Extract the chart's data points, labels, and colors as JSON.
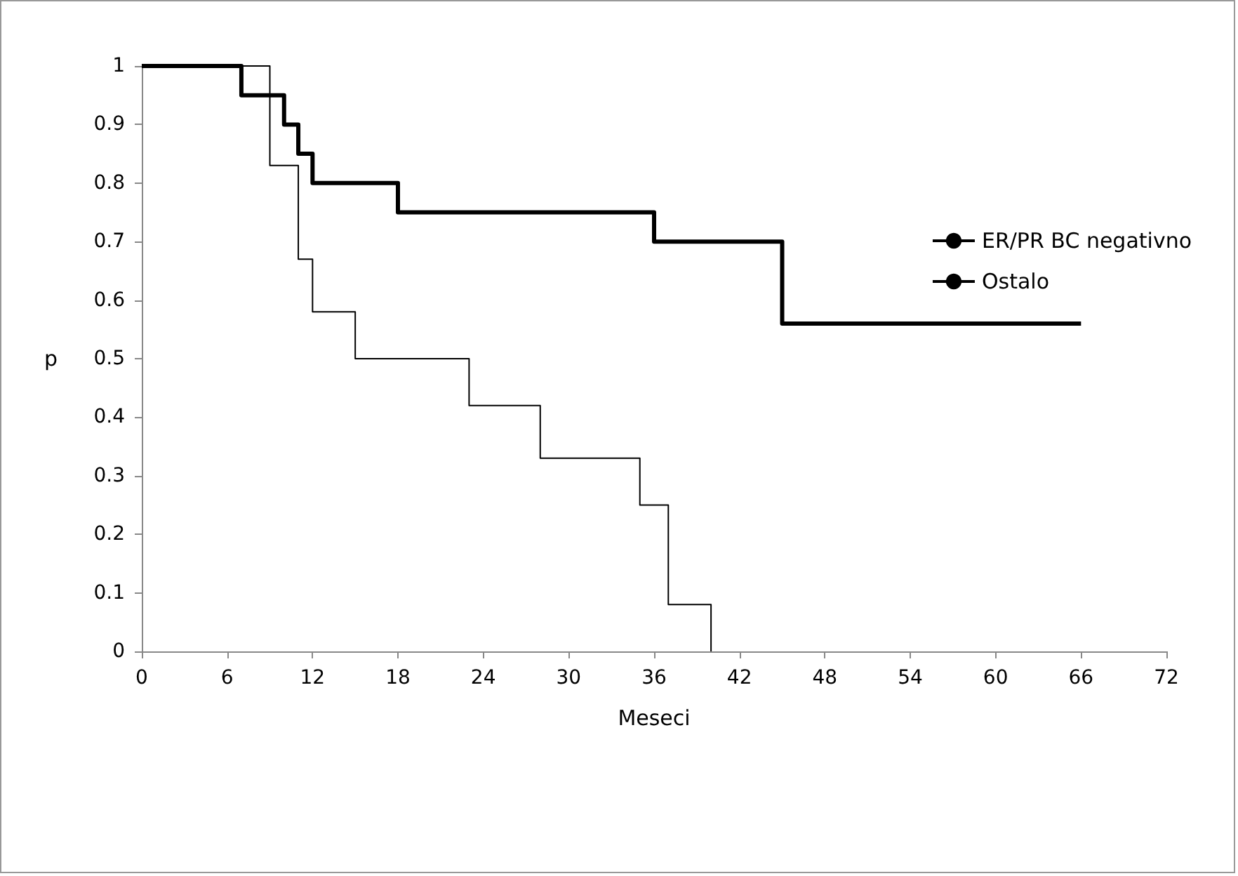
{
  "chart_data": {
    "type": "step",
    "xlabel": "Meseci",
    "ylabel": "p",
    "xlim": [
      0,
      72
    ],
    "xticks": [
      0,
      6,
      12,
      18,
      24,
      30,
      36,
      42,
      48,
      54,
      60,
      66,
      72
    ],
    "ylim": [
      0,
      1
    ],
    "yticks": [
      0,
      0.1,
      0.2,
      0.3,
      0.4,
      0.5,
      0.6,
      0.7,
      0.8,
      0.9,
      1
    ],
    "grid": false,
    "legend": "right",
    "marker": "none",
    "series": [
      {
        "name": "ER/PR BC negativno",
        "color": "#000000",
        "x": [
          0,
          9,
          11,
          12,
          15,
          23,
          28,
          35,
          37,
          40
        ],
        "values": [
          1,
          0.83,
          0.67,
          0.58,
          0.5,
          0.42,
          0.33,
          0.25,
          0.08,
          0
        ]
      },
      {
        "name": "Ostalo",
        "color": "#000000",
        "x": [
          0,
          7,
          10,
          11,
          12,
          18,
          36,
          45,
          66
        ],
        "values": [
          1,
          0.95,
          0.9,
          0.85,
          0.8,
          0.75,
          0.7,
          0.56,
          0.56
        ]
      }
    ]
  }
}
